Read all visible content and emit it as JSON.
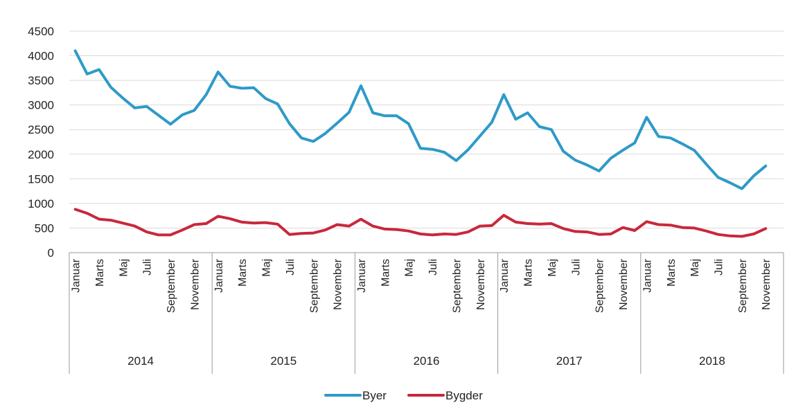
{
  "chart_data": {
    "type": "line",
    "title": "",
    "xlabel": "",
    "ylabel": "",
    "ylim": [
      0,
      4500
    ],
    "yticks": [
      0,
      500,
      1000,
      1500,
      2000,
      2500,
      3000,
      3500,
      4000,
      4500
    ],
    "grid": true,
    "legend_position": "bottom",
    "years": [
      "2014",
      "2015",
      "2016",
      "2017",
      "2018"
    ],
    "month_tick_labels": [
      "Januar",
      "Marts",
      "Maj",
      "Juli",
      "September",
      "November"
    ],
    "x": [
      "2014-01",
      "2014-02",
      "2014-03",
      "2014-04",
      "2014-05",
      "2014-06",
      "2014-07",
      "2014-08",
      "2014-09",
      "2014-10",
      "2014-11",
      "2014-12",
      "2015-01",
      "2015-02",
      "2015-03",
      "2015-04",
      "2015-05",
      "2015-06",
      "2015-07",
      "2015-08",
      "2015-09",
      "2015-10",
      "2015-11",
      "2015-12",
      "2016-01",
      "2016-02",
      "2016-03",
      "2016-04",
      "2016-05",
      "2016-06",
      "2016-07",
      "2016-08",
      "2016-09",
      "2016-10",
      "2016-11",
      "2016-12",
      "2017-01",
      "2017-02",
      "2017-03",
      "2017-04",
      "2017-05",
      "2017-06",
      "2017-07",
      "2017-08",
      "2017-09",
      "2017-10",
      "2017-11",
      "2017-12",
      "2018-01",
      "2018-02",
      "2018-03",
      "2018-04",
      "2018-05",
      "2018-06",
      "2018-07",
      "2018-08",
      "2018-09",
      "2018-10",
      "2018-11"
    ],
    "series": [
      {
        "name": "Byer",
        "color": "#2e9ac8",
        "values": [
          4100,
          3630,
          3720,
          3360,
          3140,
          2940,
          2970,
          2790,
          2610,
          2800,
          2890,
          3210,
          3670,
          3380,
          3340,
          3350,
          3130,
          3020,
          2620,
          2330,
          2260,
          2420,
          2630,
          2850,
          3390,
          2840,
          2780,
          2780,
          2620,
          2120,
          2100,
          2040,
          1870,
          2090,
          2370,
          2650,
          3210,
          2710,
          2840,
          2560,
          2500,
          2060,
          1880,
          1780,
          1660,
          1920,
          2080,
          2230,
          2750,
          2360,
          2330,
          2210,
          2080,
          1800,
          1530,
          1420,
          1300,
          1560,
          1760
        ]
      },
      {
        "name": "Bygder",
        "color": "#c8283c",
        "values": [
          880,
          800,
          680,
          660,
          600,
          540,
          420,
          360,
          360,
          460,
          570,
          590,
          740,
          690,
          620,
          600,
          610,
          580,
          370,
          390,
          400,
          460,
          570,
          540,
          680,
          540,
          480,
          470,
          440,
          380,
          360,
          380,
          370,
          420,
          540,
          550,
          760,
          620,
          590,
          580,
          590,
          490,
          430,
          420,
          370,
          380,
          510,
          450,
          630,
          570,
          560,
          510,
          500,
          440,
          370,
          340,
          330,
          380,
          490
        ]
      }
    ]
  }
}
